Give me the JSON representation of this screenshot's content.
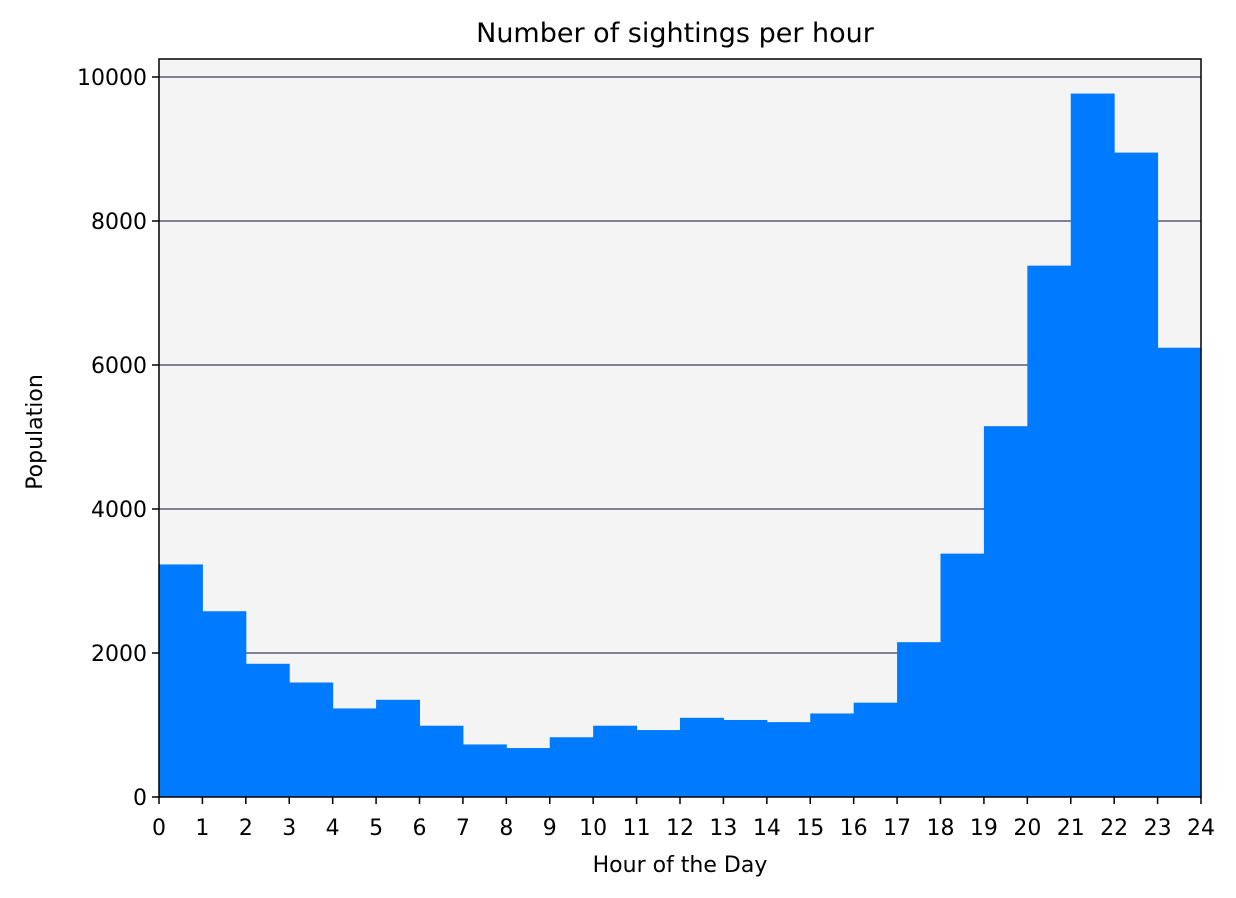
{
  "chart_data": {
    "type": "bar",
    "title": "Number of sightings per hour",
    "xlabel": "Hour of the Day",
    "ylabel": "Population",
    "bin_edges": [
      0,
      1,
      2,
      3,
      4,
      5,
      6,
      7,
      8,
      9,
      10,
      11,
      12,
      13,
      14,
      15,
      16,
      17,
      18,
      19,
      20,
      21,
      22,
      23,
      24
    ],
    "values": [
      3230,
      2580,
      1850,
      1590,
      1230,
      1350,
      990,
      730,
      680,
      830,
      990,
      930,
      1100,
      1070,
      1040,
      1160,
      1310,
      2150,
      3380,
      5150,
      7380,
      9770,
      8950,
      6240
    ],
    "xlim": [
      0,
      24
    ],
    "ylim": [
      0,
      10250
    ],
    "xticks": [
      0,
      1,
      2,
      3,
      4,
      5,
      6,
      7,
      8,
      9,
      10,
      11,
      12,
      13,
      14,
      15,
      16,
      17,
      18,
      19,
      20,
      21,
      22,
      23,
      24
    ],
    "yticks": [
      0,
      2000,
      4000,
      6000,
      8000,
      10000
    ],
    "grid": "y",
    "colors": {
      "bar": "#007bff",
      "plot_background": "#f4f4f4",
      "grid": "#5a5a78"
    }
  }
}
